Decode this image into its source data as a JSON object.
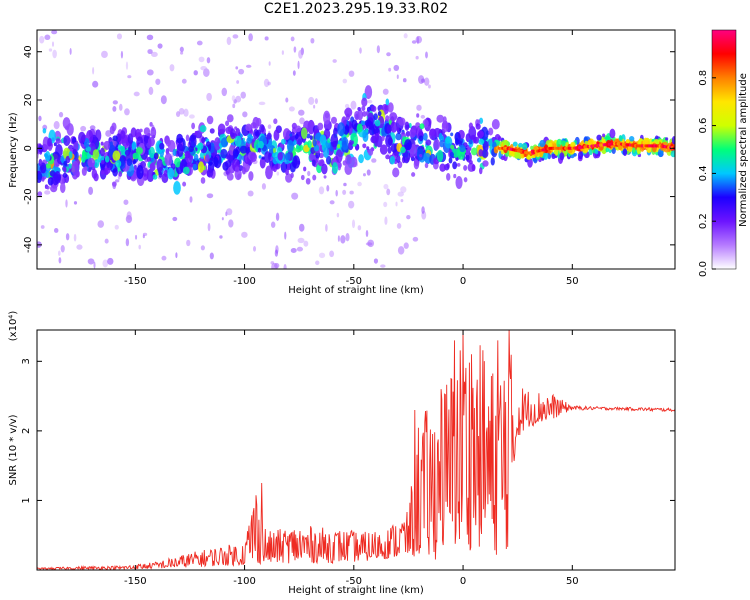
{
  "figure": {
    "title": "C2E1.2023.295.19.33.R02"
  },
  "chart_data": [
    {
      "type": "heatmap",
      "panel": "top",
      "title": "",
      "xlabel": "Height of straight line (km)",
      "ylabel": "Frequency (Hz)",
      "xlim": [
        -195,
        97
      ],
      "ylim": [
        -50,
        49
      ],
      "x_ticks": [
        "-150",
        "-100",
        "-50",
        "0",
        "50"
      ],
      "x_tick_values": [
        -150,
        -100,
        -50,
        0,
        50
      ],
      "y_ticks": [
        "40",
        "20",
        "0",
        "-20",
        "-40"
      ],
      "y_tick_values": [
        40,
        20,
        0,
        -20,
        -40
      ],
      "colorbar": {
        "label": "Normalized spectral amplitude",
        "range": [
          0,
          1
        ],
        "ticks": [
          "0.0",
          "0.2",
          "0.4",
          "0.6",
          "0.8"
        ],
        "tick_values": [
          0,
          0.2,
          0.4,
          0.6,
          0.8
        ],
        "colormap": "rainbow",
        "colors": [
          "#ffffff",
          "#b67bff",
          "#6c14ff",
          "#1c00ff",
          "#00c8ff",
          "#00ff7a",
          "#cfff00",
          "#ffe600",
          "#ff8000",
          "#ff0000",
          "#ff0080"
        ]
      },
      "ridge": {
        "x": [
          -195,
          -180,
          -165,
          -150,
          -135,
          -120,
          -105,
          -90,
          -75,
          -60,
          -50,
          -45,
          -40,
          -35,
          -30,
          -20,
          -10,
          0,
          10,
          20,
          30,
          40,
          50,
          60,
          70,
          80,
          90,
          97
        ],
        "frequency": [
          -8,
          -4,
          -3,
          -3,
          -4,
          -2,
          0,
          0,
          -1,
          1,
          6,
          9,
          10,
          7,
          2,
          1,
          0,
          0,
          0,
          0,
          -2,
          0,
          0,
          1,
          2,
          1,
          1,
          0
        ]
      }
    },
    {
      "type": "line",
      "panel": "bottom",
      "title": "",
      "xlabel": "Height of straight line (km)",
      "ylabel": "SNR (10 * v/v)",
      "y_multiplier": "(x10⁴)",
      "xlim": [
        -195,
        97
      ],
      "ylim": [
        0,
        3.45
      ],
      "x_ticks": [
        "-150",
        "-100",
        "-50",
        "0",
        "50"
      ],
      "x_tick_values": [
        -150,
        -100,
        -50,
        0,
        50
      ],
      "y_ticks": [
        "1",
        "2",
        "3"
      ],
      "y_tick_values": [
        1,
        2,
        3
      ],
      "series": [
        {
          "color": "#ee2b22",
          "envelope": {
            "x": [
              -195,
              -175,
              -155,
              -140,
              -125,
              -110,
              -100,
              -95,
              -90,
              -75,
              -60,
              -45,
              -35,
              -25,
              -20,
              -15,
              -10,
              -5,
              0,
              5,
              10,
              15,
              20,
              25,
              30,
              40,
              50,
              60,
              70,
              80,
              90,
              97
            ],
            "low": [
              0.01,
              0.01,
              0.01,
              0.02,
              0.04,
              0.06,
              0.07,
              0.08,
              0.09,
              0.1,
              0.1,
              0.12,
              0.16,
              0.18,
              0.15,
              0.1,
              0.2,
              0.25,
              0.25,
              0.3,
              0.3,
              0.2,
              0.15,
              1.9,
              2.05,
              2.15,
              2.3,
              2.3,
              2.3,
              2.29,
              2.28,
              2.28
            ],
            "high": [
              0.03,
              0.05,
              0.06,
              0.12,
              0.25,
              0.35,
              0.4,
              1.25,
              0.55,
              0.65,
              0.6,
              0.55,
              0.6,
              0.85,
              2.35,
              2.3,
              2.6,
              3.0,
              3.45,
              3.2,
              3.3,
              2.8,
              3.45,
              2.7,
              2.6,
              2.55,
              2.36,
              2.35,
              2.34,
              2.34,
              2.33,
              2.32
            ]
          },
          "notable_spikes": [
            {
              "x": -92,
              "y": 1.25
            },
            {
              "x": -22,
              "y": 2.3
            },
            {
              "x": -10,
              "y": 2.6
            },
            {
              "x": -4,
              "y": 3.3
            },
            {
              "x": 0,
              "y": 3.45
            },
            {
              "x": 4,
              "y": 3.1
            },
            {
              "x": 16,
              "y": 3.3
            },
            {
              "x": 21,
              "y": 3.45
            }
          ]
        }
      ]
    }
  ]
}
